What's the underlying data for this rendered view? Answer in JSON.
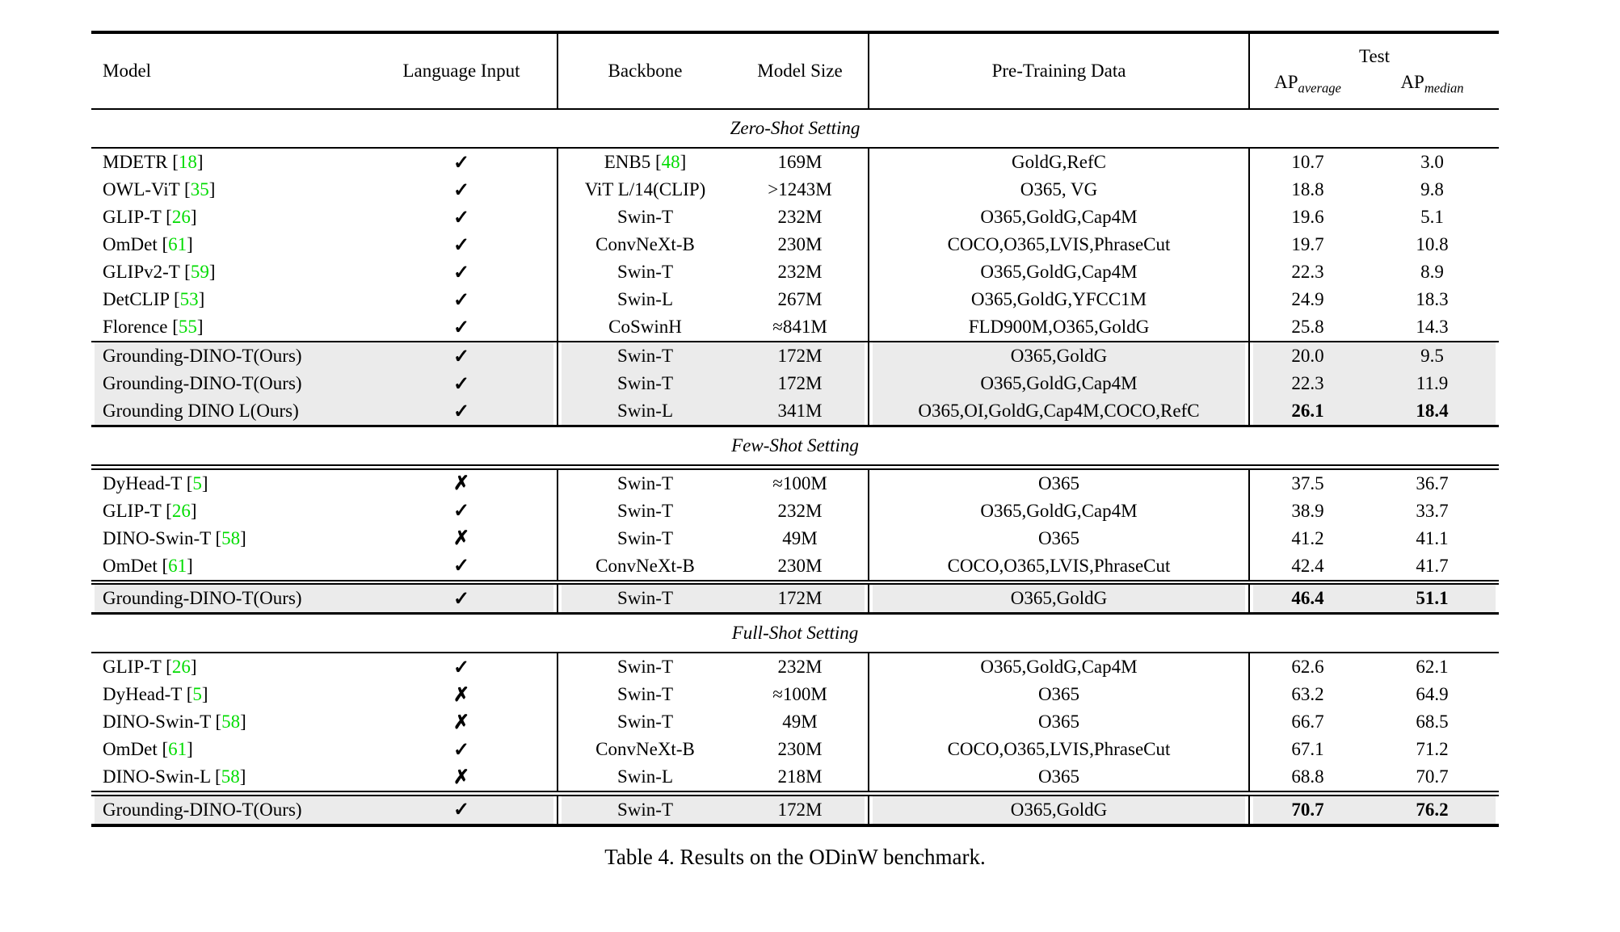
{
  "table": {
    "caption": "Table 4. Results on the ODinW benchmark.",
    "header": {
      "model": "Model",
      "language_input": "Language Input",
      "backbone": "Backbone",
      "model_size": "Model Size",
      "pretraining_data": "Pre-Training Data",
      "test": "Test",
      "ap_base": "AP",
      "ap_average_sub": "average",
      "ap_median_sub": "median"
    },
    "icons": {
      "check": "✓",
      "cross": "✗"
    },
    "sections": [
      {
        "title": "Zero-Shot Setting",
        "rows": [
          {
            "model": "MDETR",
            "ref": "18",
            "lang": true,
            "backbone": "ENB5",
            "backbone_ref": "48",
            "size": "169M",
            "pretrain": "GoldG,RefC",
            "ap_avg": "10.7",
            "ap_med": "3.0",
            "bold": false
          },
          {
            "model": "OWL-ViT",
            "ref": "35",
            "lang": true,
            "backbone": "ViT L/14(CLIP)",
            "backbone_ref": null,
            "size": ">1243M",
            "pretrain": "O365, VG",
            "ap_avg": "18.8",
            "ap_med": "9.8",
            "bold": false
          },
          {
            "model": "GLIP-T",
            "ref": "26",
            "lang": true,
            "backbone": "Swin-T",
            "backbone_ref": null,
            "size": "232M",
            "pretrain": "O365,GoldG,Cap4M",
            "ap_avg": "19.6",
            "ap_med": "5.1",
            "bold": false
          },
          {
            "model": "OmDet",
            "ref": "61",
            "lang": true,
            "backbone": "ConvNeXt-B",
            "backbone_ref": null,
            "size": "230M",
            "pretrain": "COCO,O365,LVIS,PhraseCut",
            "ap_avg": "19.7",
            "ap_med": "10.8",
            "bold": false
          },
          {
            "model": "GLIPv2-T",
            "ref": "59",
            "lang": true,
            "backbone": "Swin-T",
            "backbone_ref": null,
            "size": "232M",
            "pretrain": "O365,GoldG,Cap4M",
            "ap_avg": "22.3",
            "ap_med": "8.9",
            "bold": false
          },
          {
            "model": "DetCLIP",
            "ref": "53",
            "lang": true,
            "backbone": "Swin-L",
            "backbone_ref": null,
            "size": "267M",
            "pretrain": "O365,GoldG,YFCC1M",
            "ap_avg": "24.9",
            "ap_med": "18.3",
            "bold": false
          },
          {
            "model": "Florence",
            "ref": "55",
            "lang": true,
            "backbone": "CoSwinH",
            "backbone_ref": null,
            "size": "≈841M",
            "pretrain": "FLD900M,O365,GoldG",
            "ap_avg": "25.8",
            "ap_med": "14.3",
            "bold": false
          }
        ],
        "highlight_rows": [
          {
            "model": "Grounding-DINO-T(Ours)",
            "ref": null,
            "lang": true,
            "backbone": "Swin-T",
            "backbone_ref": null,
            "size": "172M",
            "pretrain": "O365,GoldG",
            "ap_avg": "20.0",
            "ap_med": "9.5",
            "bold": false
          },
          {
            "model": "Grounding-DINO-T(Ours)",
            "ref": null,
            "lang": true,
            "backbone": "Swin-T",
            "backbone_ref": null,
            "size": "172M",
            "pretrain": "O365,GoldG,Cap4M",
            "ap_avg": "22.3",
            "ap_med": "11.9",
            "bold": false
          },
          {
            "model": "Grounding DINO L(Ours)",
            "ref": null,
            "lang": true,
            "backbone": "Swin-L",
            "backbone_ref": null,
            "size": "341M",
            "pretrain": "O365,OI,GoldG,Cap4M,COCO,RefC",
            "ap_avg": "26.1",
            "ap_med": "18.4",
            "bold": true
          }
        ]
      },
      {
        "title": "Few-Shot Setting",
        "rows": [
          {
            "model": "DyHead-T",
            "ref": "5",
            "lang": false,
            "backbone": "Swin-T",
            "backbone_ref": null,
            "size": "≈100M",
            "pretrain": "O365",
            "ap_avg": "37.5",
            "ap_med": "36.7",
            "bold": false
          },
          {
            "model": "GLIP-T",
            "ref": "26",
            "lang": true,
            "backbone": "Swin-T",
            "backbone_ref": null,
            "size": "232M",
            "pretrain": "O365,GoldG,Cap4M",
            "ap_avg": "38.9",
            "ap_med": "33.7",
            "bold": false
          },
          {
            "model": "DINO-Swin-T",
            "ref": "58",
            "lang": false,
            "backbone": "Swin-T",
            "backbone_ref": null,
            "size": "49M",
            "pretrain": "O365",
            "ap_avg": "41.2",
            "ap_med": "41.1",
            "bold": false
          },
          {
            "model": "OmDet",
            "ref": "61",
            "lang": true,
            "backbone": "ConvNeXt-B",
            "backbone_ref": null,
            "size": "230M",
            "pretrain": "COCO,O365,LVIS,PhraseCut",
            "ap_avg": "42.4",
            "ap_med": "41.7",
            "bold": false
          }
        ],
        "highlight_rows": [
          {
            "model": "Grounding-DINO-T(Ours)",
            "ref": null,
            "lang": true,
            "backbone": "Swin-T",
            "backbone_ref": null,
            "size": "172M",
            "pretrain": "O365,GoldG",
            "ap_avg": "46.4",
            "ap_med": "51.1",
            "bold": true
          }
        ]
      },
      {
        "title": "Full-Shot Setting",
        "rows": [
          {
            "model": "GLIP-T",
            "ref": "26",
            "lang": true,
            "backbone": "Swin-T",
            "backbone_ref": null,
            "size": "232M",
            "pretrain": "O365,GoldG,Cap4M",
            "ap_avg": "62.6",
            "ap_med": "62.1",
            "bold": false
          },
          {
            "model": "DyHead-T",
            "ref": "5",
            "lang": false,
            "backbone": "Swin-T",
            "backbone_ref": null,
            "size": "≈100M",
            "pretrain": "O365",
            "ap_avg": "63.2",
            "ap_med": "64.9",
            "bold": false
          },
          {
            "model": "DINO-Swin-T",
            "ref": "58",
            "lang": false,
            "backbone": "Swin-T",
            "backbone_ref": null,
            "size": "49M",
            "pretrain": "O365",
            "ap_avg": "66.7",
            "ap_med": "68.5",
            "bold": false
          },
          {
            "model": "OmDet",
            "ref": "61",
            "lang": true,
            "backbone": "ConvNeXt-B",
            "backbone_ref": null,
            "size": "230M",
            "pretrain": "COCO,O365,LVIS,PhraseCut",
            "ap_avg": "67.1",
            "ap_med": "71.2",
            "bold": false
          },
          {
            "model": "DINO-Swin-L",
            "ref": "58",
            "lang": false,
            "backbone": "Swin-L",
            "backbone_ref": null,
            "size": "218M",
            "pretrain": "O365",
            "ap_avg": "68.8",
            "ap_med": "70.7",
            "bold": false
          }
        ],
        "highlight_rows": [
          {
            "model": "Grounding-DINO-T(Ours)",
            "ref": null,
            "lang": true,
            "backbone": "Swin-T",
            "backbone_ref": null,
            "size": "172M",
            "pretrain": "O365,GoldG",
            "ap_avg": "70.7",
            "ap_med": "76.2",
            "bold": true
          }
        ]
      }
    ]
  },
  "colors": {
    "ref_green": "#00dc00",
    "highlight_bg": "#ebebeb",
    "rule_black": "#000000"
  }
}
